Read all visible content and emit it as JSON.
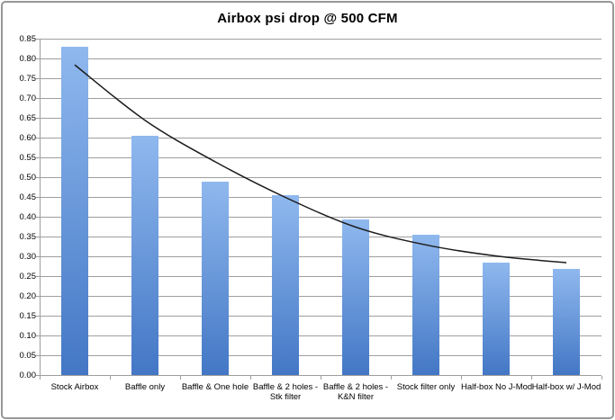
{
  "chart_data": {
    "type": "bar",
    "title": "Airbox psi drop @ 500 CFM",
    "categories": [
      "Stock Airbox",
      "Baffle only",
      "Baffle & One hole",
      "Baffle & 2 holes - Stk filter",
      "Baffle & 2 holes - K&N filter",
      "Stock filter only",
      "Half-box No J-Mod",
      "Half-box w/ J-Mod"
    ],
    "category_label_lines": [
      [
        "Stock Airbox"
      ],
      [
        "Baffle only"
      ],
      [
        "Baffle & One hole"
      ],
      [
        "Baffle & 2 holes -",
        "Stk filter"
      ],
      [
        "Baffle & 2 holes -",
        "K&N filter"
      ],
      [
        "Stock filter only"
      ],
      [
        "Half-box No J-Mod"
      ],
      [
        "Half-box w/ J-Mod"
      ]
    ],
    "values": [
      0.83,
      0.605,
      0.49,
      0.455,
      0.395,
      0.355,
      0.285,
      0.27
    ],
    "trendline": {
      "style": "smooth-decay-fit",
      "values_at_categories": [
        0.785,
        0.645,
        0.54,
        0.45,
        0.375,
        0.33,
        0.302,
        0.285
      ],
      "color": "#1c1c1c"
    },
    "xlabel": "",
    "ylabel": "",
    "ylim": [
      0,
      0.85
    ],
    "ytick_step": 0.05,
    "ytick_decimals": 2,
    "grid": true,
    "legend": "none",
    "colors": {
      "bar_top": "#8fb8ee",
      "bar_bottom": "#4377c5",
      "gridline": "#9e9e9e",
      "axis": "#9e9e9e",
      "text": "#000000",
      "frame_border": "#979797",
      "background": "#ffffff"
    }
  }
}
